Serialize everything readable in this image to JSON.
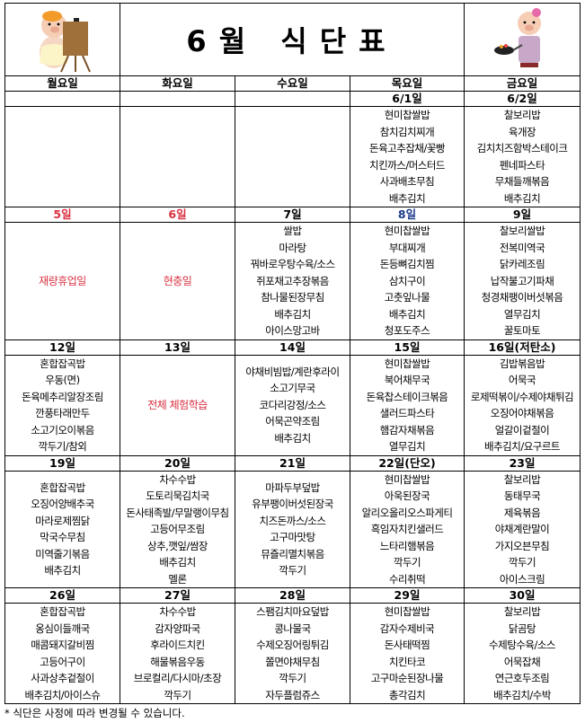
{
  "header": {
    "title": "6월 식단표"
  },
  "day_names": [
    "월요일",
    "화요일",
    "수요일",
    "목요일",
    "금요일"
  ],
  "colors": {
    "holiday": "#d83040",
    "special": "#1a3a8a",
    "normal": "#000000"
  },
  "weeks": [
    {
      "days": [
        {
          "date": "",
          "items": []
        },
        {
          "date": "",
          "items": []
        },
        {
          "date": "",
          "items": []
        },
        {
          "date": "6/1일",
          "items": [
            "현미찹쌀밥",
            "참치김치찌개",
            "돈육고추잡채/꽃빵",
            "치킨까스/머스터드",
            "사과배초무침",
            "배추김치"
          ]
        },
        {
          "date": "6/2일",
          "items": [
            "찰보리밥",
            "육개장",
            "김치치즈함박스테이크",
            "펜네파스타",
            "무채들깨볶음",
            "배추김치"
          ]
        }
      ]
    },
    {
      "days": [
        {
          "date": "5일",
          "date_color": "holiday",
          "note": "재량휴업일",
          "items": []
        },
        {
          "date": "6일",
          "date_color": "holiday",
          "note": "현충일",
          "items": []
        },
        {
          "date": "7일",
          "items": [
            "쌀밥",
            "마라탕",
            "꿔바로우탕수육/소스",
            "쥐포채고추장볶음",
            "참나물된장무침",
            "배추김치",
            "아이스망고바"
          ]
        },
        {
          "date": "8일",
          "date_color": "special",
          "items": [
            "현미찹쌀밥",
            "부대찌개",
            "돈등뼈김치찜",
            "삼치구이",
            "고춧잎나물",
            "배추김치",
            "청포도주스"
          ]
        },
        {
          "date": "9일",
          "items": [
            "찰보리쌀밥",
            "전복미역국",
            "닭카레조림",
            "납작불고기파채",
            "청경채팽이버섯볶음",
            "열무김치",
            "꿀토마토"
          ]
        }
      ]
    },
    {
      "days": [
        {
          "date": "12일",
          "items": [
            "혼합잡곡밥",
            "우동(면)",
            "돈육메추리알장조림",
            "깐풍타래만두",
            "소고기오이볶음",
            "깍두기/참외"
          ]
        },
        {
          "date": "13일",
          "note": "전체 체험학습",
          "items": []
        },
        {
          "date": "14일",
          "items": [
            "야채비빔밥/계란후라이",
            "소고기무국",
            "코다리강정/소스",
            "어묵곤약조림",
            "배추김치"
          ]
        },
        {
          "date": "15일",
          "items": [
            "현미찹쌀밥",
            "북어채무국",
            "돈육찹스테이크볶음",
            "샐러드파스타",
            "햄감자채볶음",
            "열무김치"
          ]
        },
        {
          "date": "16일(저탄소)",
          "items": [
            "김밥볶음밥",
            "어묵국",
            "로제떡볶이/수제야채튀김",
            "오징어야채볶음",
            "얼갈이겉절이",
            "배추김치/요구르트"
          ]
        }
      ]
    },
    {
      "days": [
        {
          "date": "19일",
          "items": [
            "혼합잡곡밥",
            "오징어양배추국",
            "마라로제찜닭",
            "막국수무침",
            "미역줄기볶음",
            "배추김치"
          ]
        },
        {
          "date": "20일",
          "items": [
            "차수수밥",
            "도토리묵김치국",
            "돈사태족발/무말랭이무침",
            "고등어무조림",
            "상추,깻잎/쌈장",
            "배추김치",
            "멜론"
          ]
        },
        {
          "date": "21일",
          "items": [
            "마파두부덮밥",
            "유부팽이버섯된장국",
            "치즈돈까스/소스",
            "고구마맛탕",
            "뮤즐리멸치볶음",
            "깍두기"
          ]
        },
        {
          "date": "22일(단오)",
          "items": [
            "현미찹쌀밥",
            "아욱된장국",
            "알리오올리오스파게티",
            "흑임자치킨샐러드",
            "느타리햄볶음",
            "깍두기",
            "수리취떡"
          ]
        },
        {
          "date": "23일",
          "items": [
            "찰보리밥",
            "동태무국",
            "제육볶음",
            "야채계란말이",
            "가지오븐무침",
            "깍두기",
            "아이스크림"
          ]
        }
      ]
    },
    {
      "days": [
        {
          "date": "26일",
          "items": [
            "혼합잡곡밥",
            "옹심이들깨국",
            "매콤돼지갈비찜",
            "고등어구이",
            "사과상추겉절이",
            "배추김치/아이스슈"
          ]
        },
        {
          "date": "27일",
          "items": [
            "차수수밥",
            "감자양파국",
            "후라이드치킨",
            "해물볶음우동",
            "브로컬리/다시마/초장",
            "깍두기"
          ]
        },
        {
          "date": "28일",
          "items": [
            "스팸김치마요덮밥",
            "콩나물국",
            "수제오징어링튀김",
            "쫄면야채무침",
            "깍두기",
            "자두플럼쥬스"
          ]
        },
        {
          "date": "29일",
          "items": [
            "현미찹쌀밥",
            "감자수제비국",
            "돈사태떡찜",
            "치킨타코",
            "고구마순된장나물",
            "총각김치"
          ]
        },
        {
          "date": "30일",
          "items": [
            "찰보리밥",
            "닭곰탕",
            "수제탕수육/소스",
            "어묵잡채",
            "연근호두조림",
            "배추김치/수박"
          ]
        }
      ]
    }
  ],
  "footer": "* 식단은 사정에 따라 변경될 수 있습니다."
}
